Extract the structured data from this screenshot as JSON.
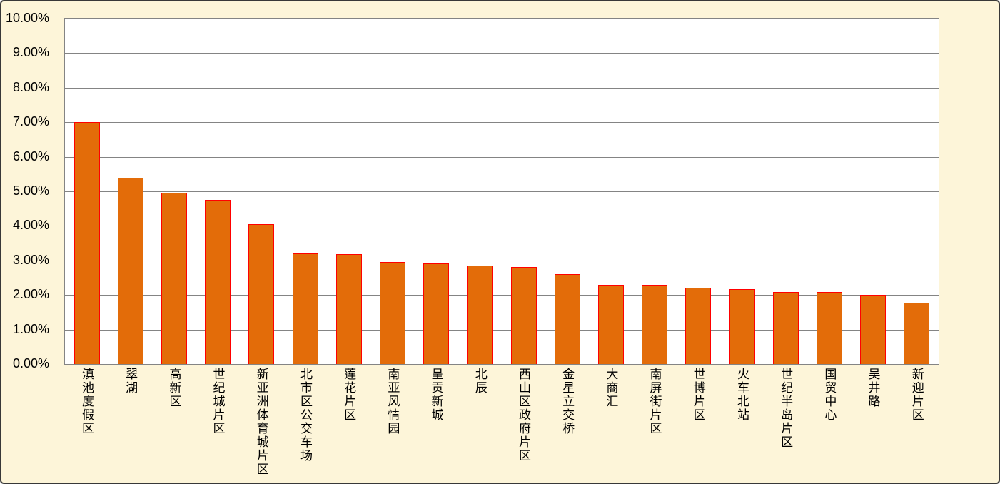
{
  "chart_data": {
    "type": "bar",
    "title": "",
    "xlabel": "",
    "ylabel": "",
    "categories": [
      "滇池度假区",
      "翠湖",
      "高新区",
      "世纪城片区",
      "新亚洲体育城片区",
      "北市区公交车场",
      "莲花片区",
      "南亚风情园",
      "呈贡新城",
      "北辰",
      "西山区政府片区",
      "金星立交桥",
      "大商汇",
      "南屏街片区",
      "世博片区",
      "火车北站",
      "世纪半岛片区",
      "国贸中心",
      "吴井路",
      "新迎片区"
    ],
    "values": [
      7.0,
      5.4,
      4.95,
      4.76,
      4.05,
      3.21,
      3.18,
      2.96,
      2.92,
      2.86,
      2.81,
      2.61,
      2.3,
      2.29,
      2.21,
      2.17,
      2.09,
      2.08,
      2.0,
      1.77
    ],
    "ylim": [
      0,
      10
    ],
    "y_tick_step": 1,
    "y_tick_labels": [
      "0.00%",
      "1.00%",
      "2.00%",
      "3.00%",
      "4.00%",
      "5.00%",
      "6.00%",
      "7.00%",
      "8.00%",
      "9.00%",
      "10.00%"
    ],
    "grid": true,
    "legend": false,
    "colors": {
      "bar_fill": "#E36C09",
      "bar_border": "#FF0000",
      "background": "#FDF5D9",
      "plot_background": "#FFFFFF",
      "gridline": "#848484",
      "text": "#000000",
      "frame_border": "#383838"
    }
  }
}
